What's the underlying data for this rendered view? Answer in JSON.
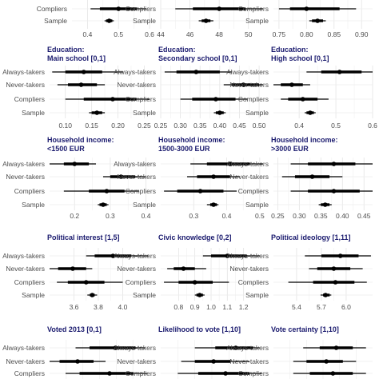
{
  "chart_data": [
    {
      "type": "dot-interval",
      "title": [
        ""
      ],
      "rows": [
        "Compliers",
        "Sample"
      ],
      "xlim": [
        0.35,
        0.6
      ],
      "ticks": [
        0.4,
        0.5,
        0.6
      ],
      "tick_labels": [
        "0.4",
        "0.5",
        "0.6"
      ],
      "points": [
        {
          "row": "Compliers",
          "est": 0.5,
          "ci90": [
            0.44,
            0.56
          ],
          "ci95": [
            0.41,
            0.59
          ]
        },
        {
          "row": "Sample",
          "est": 0.47,
          "ci90": [
            0.46,
            0.48
          ],
          "ci95": [
            0.455,
            0.485
          ]
        }
      ]
    },
    {
      "type": "dot-interval",
      "title": [
        ""
      ],
      "rows": [
        "Compliers",
        "Sample"
      ],
      "xlim": [
        44,
        51
      ],
      "ticks": [
        44,
        46,
        48,
        50
      ],
      "tick_labels": [
        "44",
        "46",
        "48",
        "50"
      ],
      "points": [
        {
          "row": "Compliers",
          "est": 48.0,
          "ci90": [
            46.2,
            49.8
          ],
          "ci95": [
            45.0,
            51.0
          ]
        },
        {
          "row": "Sample",
          "est": 47.1,
          "ci90": [
            46.8,
            47.4
          ],
          "ci95": [
            46.6,
            47.6
          ]
        }
      ]
    },
    {
      "type": "dot-interval",
      "title": [
        ""
      ],
      "rows": [
        "Compliers",
        "Sample"
      ],
      "xlim": [
        0.74,
        0.92
      ],
      "ticks": [
        0.75,
        0.8,
        0.85,
        0.9
      ],
      "tick_labels": [
        "0.75",
        "0.80",
        "0.85",
        "0.90"
      ],
      "points": [
        {
          "row": "Compliers",
          "est": 0.8,
          "ci90": [
            0.77,
            0.86
          ],
          "ci95": [
            0.75,
            0.89
          ]
        },
        {
          "row": "Sample",
          "est": 0.82,
          "ci90": [
            0.81,
            0.83
          ],
          "ci95": [
            0.805,
            0.835
          ]
        }
      ]
    },
    {
      "type": "dot-interval",
      "title": [
        "Education:",
        "Main school [0,1]"
      ],
      "rows": [
        "Always-takers",
        "Never-takers",
        "Compliers",
        "Sample"
      ],
      "xlim": [
        0.07,
        0.26
      ],
      "ticks": [
        0.1,
        0.15,
        0.2,
        0.25
      ],
      "tick_labels": [
        "0.10",
        "0.15",
        "0.20",
        "0.25"
      ],
      "points": [
        {
          "row": "Always-takers",
          "est": 0.135,
          "ci90": [
            0.1,
            0.17
          ],
          "ci95": [
            0.075,
            0.21
          ]
        },
        {
          "row": "Never-takers",
          "est": 0.13,
          "ci90": [
            0.105,
            0.16
          ],
          "ci95": [
            0.085,
            0.175
          ]
        },
        {
          "row": "Compliers",
          "est": 0.19,
          "ci90": [
            0.135,
            0.235
          ],
          "ci95": [
            0.1,
            0.26
          ]
        },
        {
          "row": "Sample",
          "est": 0.16,
          "ci90": [
            0.15,
            0.17
          ],
          "ci95": [
            0.145,
            0.175
          ]
        }
      ]
    },
    {
      "type": "dot-interval",
      "title": [
        "Education:",
        "Secondary school [0,1]"
      ],
      "rows": [
        "Always-takers",
        "Never-takers",
        "Compliers",
        "Sample"
      ],
      "xlim": [
        0.25,
        0.51
      ],
      "ticks": [
        0.25,
        0.3,
        0.35,
        0.4,
        0.45,
        0.5
      ],
      "tick_labels": [
        "0.25",
        "0.30",
        "0.35",
        "0.40",
        "0.45",
        "0.50"
      ],
      "points": [
        {
          "row": "Always-takers",
          "est": 0.34,
          "ci90": [
            0.29,
            0.4
          ],
          "ci95": [
            0.26,
            0.43
          ]
        },
        {
          "row": "Never-takers",
          "est": 0.46,
          "ci90": [
            0.43,
            0.5
          ],
          "ci95": [
            0.41,
            0.51
          ]
        },
        {
          "row": "Compliers",
          "est": 0.39,
          "ci90": [
            0.33,
            0.44
          ],
          "ci95": [
            0.3,
            0.47
          ]
        },
        {
          "row": "Sample",
          "est": 0.4,
          "ci90": [
            0.39,
            0.41
          ],
          "ci95": [
            0.385,
            0.415
          ]
        }
      ]
    },
    {
      "type": "dot-interval",
      "title": [
        "Education:",
        "High school [0,1]"
      ],
      "rows": [
        "Always-takers",
        "Never-takers",
        "Compliers",
        "Sample"
      ],
      "xlim": [
        0.33,
        0.6
      ],
      "ticks": [
        0.4,
        0.5,
        0.6
      ],
      "tick_labels": [
        "0.4",
        "0.5",
        "0.6"
      ],
      "points": [
        {
          "row": "Always-takers",
          "est": 0.51,
          "ci90": [
            0.46,
            0.57
          ],
          "ci95": [
            0.42,
            0.6
          ]
        },
        {
          "row": "Never-takers",
          "est": 0.38,
          "ci90": [
            0.35,
            0.41
          ],
          "ci95": [
            0.33,
            0.43
          ]
        },
        {
          "row": "Compliers",
          "est": 0.41,
          "ci90": [
            0.37,
            0.45
          ],
          "ci95": [
            0.35,
            0.48
          ]
        },
        {
          "row": "Sample",
          "est": 0.43,
          "ci90": [
            0.42,
            0.44
          ],
          "ci95": [
            0.415,
            0.445
          ]
        }
      ]
    },
    {
      "type": "dot-interval",
      "title": [
        "Household income:",
        "<1500 EUR"
      ],
      "rows": [
        "Always-takers",
        "Never-takers",
        "Compliers",
        "Sample"
      ],
      "xlim": [
        0.13,
        0.41
      ],
      "ticks": [
        0.2,
        0.3,
        0.4
      ],
      "tick_labels": [
        "0.2",
        "0.3",
        "0.4"
      ],
      "points": [
        {
          "row": "Always-takers",
          "est": 0.2,
          "ci90": [
            0.17,
            0.24
          ],
          "ci95": [
            0.13,
            0.26
          ]
        },
        {
          "row": "Never-takers",
          "est": 0.33,
          "ci90": [
            0.3,
            0.37
          ],
          "ci95": [
            0.28,
            0.4
          ]
        },
        {
          "row": "Compliers",
          "est": 0.29,
          "ci90": [
            0.24,
            0.34
          ],
          "ci95": [
            0.17,
            0.38
          ]
        },
        {
          "row": "Sample",
          "est": 0.28,
          "ci90": [
            0.27,
            0.29
          ],
          "ci95": [
            0.265,
            0.295
          ]
        }
      ]
    },
    {
      "type": "dot-interval",
      "title": [
        "Household income:",
        "1500-3000 EUR"
      ],
      "rows": [
        "Always-takers",
        "Never-takers",
        "Compliers",
        "Sample"
      ],
      "xlim": [
        0.2,
        0.51
      ],
      "ticks": [
        0.3,
        0.4,
        0.5
      ],
      "tick_labels": [
        "0.3",
        "0.4",
        "0.5"
      ],
      "points": [
        {
          "row": "Always-takers",
          "est": 0.41,
          "ci90": [
            0.34,
            0.47
          ],
          "ci95": [
            0.29,
            0.51
          ]
        },
        {
          "row": "Never-takers",
          "est": 0.36,
          "ci90": [
            0.31,
            0.41
          ],
          "ci95": [
            0.28,
            0.44
          ]
        },
        {
          "row": "Compliers",
          "est": 0.32,
          "ci90": [
            0.25,
            0.39
          ],
          "ci95": [
            0.21,
            0.43
          ]
        },
        {
          "row": "Sample",
          "est": 0.36,
          "ci90": [
            0.35,
            0.37
          ],
          "ci95": [
            0.34,
            0.375
          ]
        }
      ]
    },
    {
      "type": "dot-interval",
      "title": [
        "Household income:",
        ">3000 EUR"
      ],
      "rows": [
        "Always-takers",
        "Never-takers",
        "Compliers",
        "Sample"
      ],
      "xlim": [
        0.24,
        0.47
      ],
      "ticks": [
        0.25,
        0.3,
        0.35,
        0.4,
        0.45
      ],
      "tick_labels": [
        "0.25",
        "0.30",
        "0.35",
        "0.40",
        "0.45"
      ],
      "points": [
        {
          "row": "Always-takers",
          "est": 0.38,
          "ci90": [
            0.32,
            0.43
          ],
          "ci95": [
            0.28,
            0.47
          ]
        },
        {
          "row": "Never-takers",
          "est": 0.33,
          "ci90": [
            0.29,
            0.37
          ],
          "ci95": [
            0.26,
            0.4
          ]
        },
        {
          "row": "Compliers",
          "est": 0.38,
          "ci90": [
            0.32,
            0.44
          ],
          "ci95": [
            0.28,
            0.47
          ]
        },
        {
          "row": "Sample",
          "est": 0.36,
          "ci90": [
            0.35,
            0.37
          ],
          "ci95": [
            0.345,
            0.375
          ]
        }
      ]
    },
    {
      "type": "dot-interval",
      "title": [
        "Political interest [1,5]"
      ],
      "rows": [
        "Always-takers",
        "Never-takers",
        "Compliers",
        "Sample"
      ],
      "xlim": [
        3.4,
        4.22
      ],
      "ticks": [
        3.6,
        3.8,
        4.0
      ],
      "tick_labels": [
        "3.6",
        "3.8",
        "4.0"
      ],
      "points": [
        {
          "row": "Always-takers",
          "est": 3.92,
          "ci90": [
            3.77,
            4.07
          ],
          "ci95": [
            3.7,
            4.21
          ]
        },
        {
          "row": "Never-takers",
          "est": 3.59,
          "ci90": [
            3.47,
            3.7
          ],
          "ci95": [
            3.4,
            3.75
          ]
        },
        {
          "row": "Compliers",
          "est": 3.7,
          "ci90": [
            3.55,
            3.85
          ],
          "ci95": [
            3.46,
            4.0
          ]
        },
        {
          "row": "Sample",
          "est": 3.75,
          "ci90": [
            3.73,
            3.77
          ],
          "ci95": [
            3.71,
            3.79
          ]
        }
      ]
    },
    {
      "type": "dot-interval",
      "title": [
        "Civic knowledge [0,2]"
      ],
      "rows": [
        "Always-takers",
        "Never-takers",
        "Compliers",
        "Sample"
      ],
      "xlim": [
        0.69,
        1.32
      ],
      "ticks": [
        0.8,
        0.9,
        1.0,
        1.1,
        1.2
      ],
      "tick_labels": [
        "0.8",
        "0.9",
        "1.0",
        "1.1",
        "1.2"
      ],
      "points": [
        {
          "row": "Always-takers",
          "est": 1.1,
          "ci90": [
            1.0,
            1.22
          ],
          "ci95": [
            0.95,
            1.3
          ]
        },
        {
          "row": "Never-takers",
          "est": 0.83,
          "ci90": [
            0.77,
            0.9
          ],
          "ci95": [
            0.73,
            0.97
          ]
        },
        {
          "row": "Compliers",
          "est": 0.9,
          "ci90": [
            0.8,
            1.01
          ],
          "ci95": [
            0.71,
            1.11
          ]
        },
        {
          "row": "Sample",
          "est": 0.93,
          "ci90": [
            0.91,
            0.95
          ],
          "ci95": [
            0.9,
            0.96
          ]
        }
      ]
    },
    {
      "type": "dot-interval",
      "title": [
        "Political ideology [1,11]"
      ],
      "rows": [
        "Always-takers",
        "Never-takers",
        "Compliers",
        "Sample"
      ],
      "xlim": [
        5.12,
        6.32
      ],
      "ticks": [
        5.4,
        5.7,
        6.0
      ],
      "tick_labels": [
        "5.4",
        "5.7",
        "6.0"
      ],
      "points": [
        {
          "row": "Always-takers",
          "est": 5.93,
          "ci90": [
            5.7,
            6.15
          ],
          "ci95": [
            5.5,
            6.3
          ]
        },
        {
          "row": "Never-takers",
          "est": 5.85,
          "ci90": [
            5.65,
            6.05
          ],
          "ci95": [
            5.55,
            6.2
          ]
        },
        {
          "row": "Compliers",
          "est": 5.87,
          "ci90": [
            5.6,
            6.1
          ],
          "ci95": [
            5.3,
            6.25
          ]
        },
        {
          "row": "Sample",
          "est": 5.75,
          "ci90": [
            5.72,
            5.8
          ],
          "ci95": [
            5.69,
            5.82
          ]
        }
      ]
    },
    {
      "type": "dot-interval",
      "title": [
        "Voted 2013 [0,1]"
      ],
      "rows": [
        "Always-takers",
        "Never-takers",
        "Compliers"
      ],
      "xlim": [
        0.5,
        1.0
      ],
      "ticks": [],
      "tick_labels": [],
      "points": [
        {
          "row": "Always-takers",
          "est": 0.83,
          "ci90": [
            0.7,
            0.93
          ],
          "ci95": [
            0.63,
            0.98
          ]
        },
        {
          "row": "Never-takers",
          "est": 0.64,
          "ci90": [
            0.55,
            0.72
          ],
          "ci95": [
            0.5,
            0.78
          ]
        },
        {
          "row": "Compliers",
          "est": 0.8,
          "ci90": [
            0.65,
            0.92
          ],
          "ci95": [
            0.58,
            0.99
          ]
        }
      ]
    },
    {
      "type": "dot-interval",
      "title": [
        "Likelihood to vote [1,10]"
      ],
      "rows": [
        "Always-takers",
        "Never-takers",
        "Compliers"
      ],
      "xlim": [
        7.0,
        10.0
      ],
      "ticks": [],
      "tick_labels": [],
      "points": [
        {
          "row": "Always-takers",
          "est": 9.2,
          "ci90": [
            8.6,
            9.7
          ],
          "ci95": [
            8.0,
            9.9
          ]
        },
        {
          "row": "Never-takers",
          "est": 8.55,
          "ci90": [
            8.0,
            9.05
          ],
          "ci95": [
            7.6,
            9.6
          ]
        },
        {
          "row": "Compliers",
          "est": 8.9,
          "ci90": [
            8.1,
            9.6
          ],
          "ci95": [
            7.5,
            9.95
          ]
        }
      ]
    },
    {
      "type": "dot-interval",
      "title": [
        "Vote certainty [1,10]"
      ],
      "rows": [
        "Always-takers",
        "Never-takers",
        "Compliers"
      ],
      "xlim": [
        7.0,
        10.0
      ],
      "ticks": [],
      "tick_labels": [],
      "points": [
        {
          "row": "Always-takers",
          "est": 8.9,
          "ci90": [
            8.4,
            9.4
          ],
          "ci95": [
            7.9,
            9.8
          ]
        },
        {
          "row": "Never-takers",
          "est": 8.6,
          "ci90": [
            8.0,
            9.1
          ],
          "ci95": [
            7.6,
            9.5
          ]
        },
        {
          "row": "Compliers",
          "est": 8.8,
          "ci90": [
            8.1,
            9.4
          ],
          "ci95": [
            7.6,
            9.8
          ]
        }
      ]
    }
  ]
}
